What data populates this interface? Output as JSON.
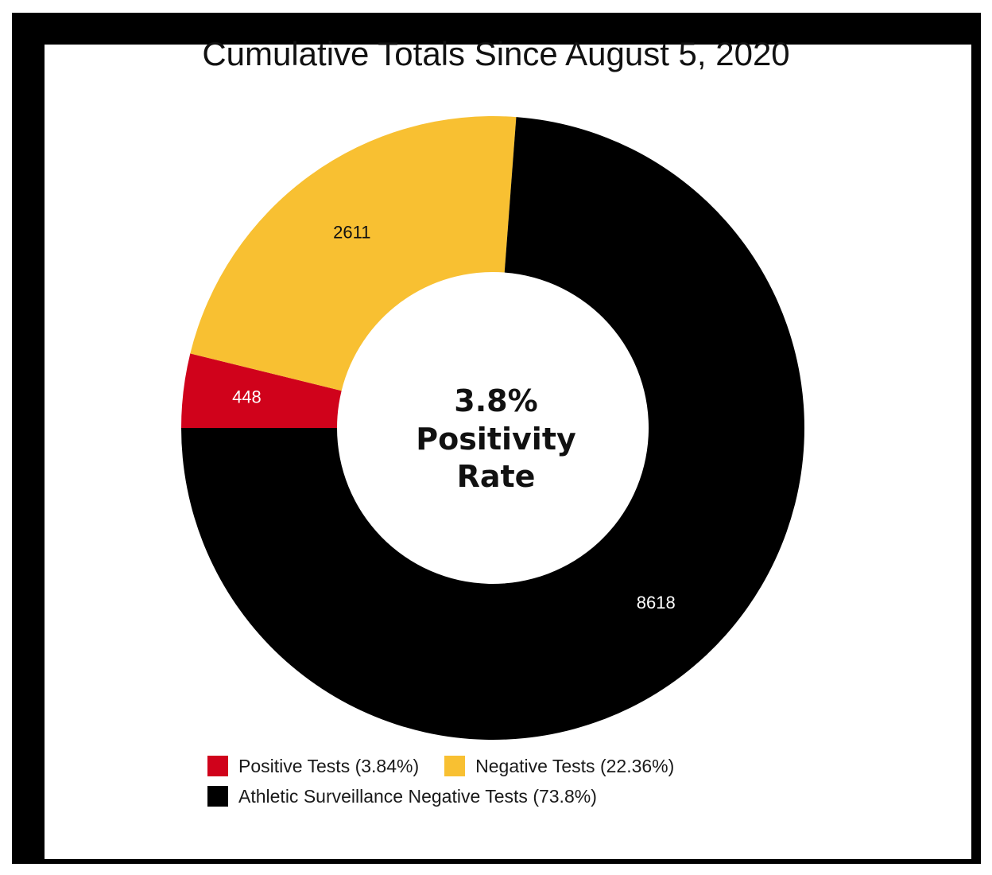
{
  "chart_data": {
    "type": "pie",
    "title": "Cumulative Totals Since August 5, 2020",
    "center_text": [
      "3.8%",
      "Positivity",
      "Rate"
    ],
    "slices": [
      {
        "name": "Positive Tests",
        "value": 448,
        "label": "448",
        "color": "#d0021b",
        "label_color": "#ffffff"
      },
      {
        "name": "Negative Tests",
        "value": 2611,
        "label": "2611",
        "color": "#f8c032",
        "label_color": "#111111"
      },
      {
        "name": "Athletic Surveillance Negative Tests",
        "value": 8618,
        "label": "8618",
        "color": "#000000",
        "label_color": "#ffffff"
      }
    ],
    "legend": [
      {
        "label": "Positive Tests (3.84%)",
        "color": "#d0021b"
      },
      {
        "label": "Negative Tests (22.36%)",
        "color": "#f8c032"
      },
      {
        "label": "Athletic Surveillance Negative Tests (73.8%)",
        "color": "#000000"
      }
    ],
    "legend_position": "bottom"
  }
}
